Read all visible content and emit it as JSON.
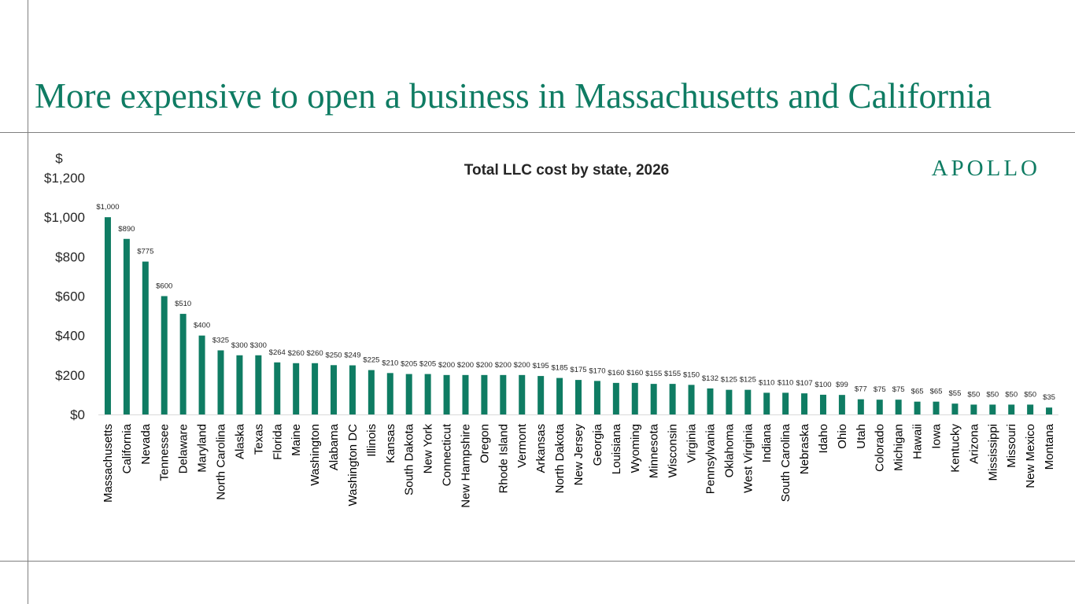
{
  "header": {
    "title": "More expensive to open a business in Massachusetts and California",
    "brand": "APOLLO"
  },
  "colors": {
    "accent": "#0f7c63",
    "bar": "#0f7c63",
    "divider": "#7f7f7f",
    "text": "#262626"
  },
  "chart_data": {
    "type": "bar",
    "title": "Total LLC cost by state, 2026",
    "ylabel": "$",
    "xlabel": "",
    "ylim": [
      0,
      1200
    ],
    "yticks": [
      0,
      200,
      400,
      600,
      800,
      1000,
      1200
    ],
    "ytick_labels": [
      "$0",
      "$200",
      "$400",
      "$600",
      "$800",
      "$1,000",
      "$1,200"
    ],
    "grid": false,
    "legend": "none",
    "categories": [
      "Massachusetts",
      "California",
      "Nevada",
      "Tennessee",
      "Delaware",
      "Maryland",
      "North Carolina",
      "Alaska",
      "Texas",
      "Florida",
      "Maine",
      "Washington",
      "Alabama",
      "Washington DC",
      "Illinois",
      "Kansas",
      "South Dakota",
      "New York",
      "Connecticut",
      "New Hampshire",
      "Oregon",
      "Rhode Island",
      "Vermont",
      "Arkansas",
      "North Dakota",
      "New Jersey",
      "Georgia",
      "Louisiana",
      "Wyoming",
      "Minnesota",
      "Wisconsin",
      "Virginia",
      "Pennsylvania",
      "Oklahoma",
      "West Virginia",
      "Indiana",
      "South Carolina",
      "Nebraska",
      "Idaho",
      "Ohio",
      "Utah",
      "Colorado",
      "Michigan",
      "Hawaii",
      "Iowa",
      "Kentucky",
      "Arizona",
      "Mississippi",
      "Missouri",
      "New Mexico",
      "Montana"
    ],
    "values": [
      1000,
      890,
      775,
      600,
      510,
      400,
      325,
      300,
      300,
      264,
      260,
      260,
      250,
      249,
      225,
      210,
      205,
      205,
      200,
      200,
      200,
      200,
      200,
      195,
      185,
      175,
      170,
      160,
      160,
      155,
      155,
      150,
      132,
      125,
      125,
      110,
      110,
      107,
      100,
      99,
      77,
      75,
      75,
      65,
      65,
      55,
      50,
      50,
      50,
      50,
      35
    ],
    "data_labels": [
      "$1,000",
      "$890",
      "$775",
      "$600",
      "$510",
      "$400",
      "$325",
      "$300",
      "$300",
      "$264",
      "$260",
      "$260",
      "$250",
      "$249",
      "$225",
      "$210",
      "$205",
      "$205",
      "$200",
      "$200",
      "$200",
      "$200",
      "$200",
      "$195",
      "$185",
      "$175",
      "$170",
      "$160",
      "$160",
      "$155",
      "$155",
      "$150",
      "$132",
      "$125",
      "$125",
      "$110",
      "$110",
      "$107",
      "$100",
      "$99",
      "$77",
      "$75",
      "$75",
      "$65",
      "$65",
      "$55",
      "$50",
      "$50",
      "$50",
      "$50",
      "$35"
    ]
  }
}
